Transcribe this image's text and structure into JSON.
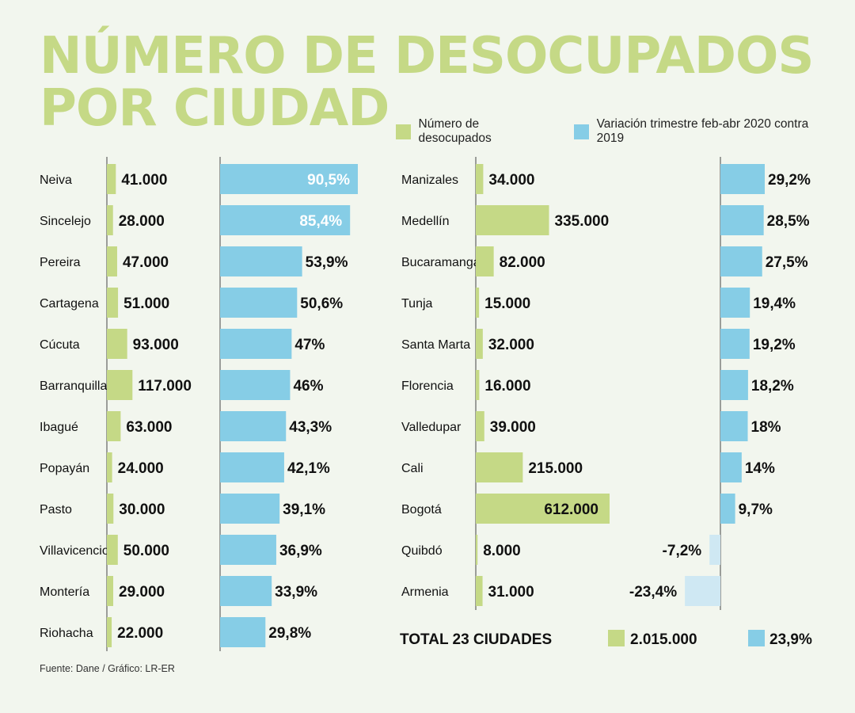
{
  "title": {
    "line1": "NÚMERO DE DESOCUPADOS",
    "line2": "POR CIUDAD"
  },
  "legend": {
    "green_label": "Número de desocupados",
    "blue_label": "Variación trimestre feb-abr 2020 contra 2019"
  },
  "colors": {
    "background": "#f2f6ee",
    "title": "#c5d986",
    "green": "#c5d986",
    "blue": "#86cde6",
    "blue_negative": "#cfe8f3",
    "axis": "#444444",
    "text": "#111111"
  },
  "source": "Fuente: Dane / Gráfico: LR-ER",
  "chart_data": {
    "type": "bar",
    "title": "NÚMERO DE DESOCUPADOS POR CIUDAD",
    "series": [
      {
        "name": "Número de desocupados",
        "key": "desocupados",
        "color": "#c5d986"
      },
      {
        "name": "Variación trimestre feb-abr 2020 contra 2019",
        "key": "variacion",
        "color": "#86cde6"
      }
    ],
    "panels": [
      {
        "rows": [
          {
            "city": "Neiva",
            "desocupados": 41000,
            "desocupados_label": "41.000",
            "variacion": 90.5,
            "variacion_label": "90,5%"
          },
          {
            "city": "Sincelejo",
            "desocupados": 28000,
            "desocupados_label": "28.000",
            "variacion": 85.4,
            "variacion_label": "85,4%"
          },
          {
            "city": "Pereira",
            "desocupados": 47000,
            "desocupados_label": "47.000",
            "variacion": 53.9,
            "variacion_label": "53,9%"
          },
          {
            "city": "Cartagena",
            "desocupados": 51000,
            "desocupados_label": "51.000",
            "variacion": 50.6,
            "variacion_label": "50,6%"
          },
          {
            "city": "Cúcuta",
            "desocupados": 93000,
            "desocupados_label": "93.000",
            "variacion": 47,
            "variacion_label": "47%"
          },
          {
            "city": "Barranquilla",
            "desocupados": 117000,
            "desocupados_label": "117.000",
            "variacion": 46,
            "variacion_label": "46%"
          },
          {
            "city": "Ibagué",
            "desocupados": 63000,
            "desocupados_label": "63.000",
            "variacion": 43.3,
            "variacion_label": "43,3%"
          },
          {
            "city": "Popayán",
            "desocupados": 24000,
            "desocupados_label": "24.000",
            "variacion": 42.1,
            "variacion_label": "42,1%"
          },
          {
            "city": "Pasto",
            "desocupados": 30000,
            "desocupados_label": "30.000",
            "variacion": 39.1,
            "variacion_label": "39,1%"
          },
          {
            "city": "Villavicencio",
            "desocupados": 50000,
            "desocupados_label": "50.000",
            "variacion": 36.9,
            "variacion_label": "36,9%"
          },
          {
            "city": "Montería",
            "desocupados": 29000,
            "desocupados_label": "29.000",
            "variacion": 33.9,
            "variacion_label": "33,9%"
          },
          {
            "city": "Riohacha",
            "desocupados": 22000,
            "desocupados_label": "22.000",
            "variacion": 29.8,
            "variacion_label": "29,8%"
          }
        ]
      },
      {
        "rows": [
          {
            "city": "Manizales",
            "desocupados": 34000,
            "desocupados_label": "34.000",
            "variacion": 29.2,
            "variacion_label": "29,2%"
          },
          {
            "city": "Medellín",
            "desocupados": 335000,
            "desocupados_label": "335.000",
            "variacion": 28.5,
            "variacion_label": "28,5%"
          },
          {
            "city": "Bucaramanga",
            "desocupados": 82000,
            "desocupados_label": "82.000",
            "variacion": 27.5,
            "variacion_label": "27,5%"
          },
          {
            "city": "Tunja",
            "desocupados": 15000,
            "desocupados_label": "15.000",
            "variacion": 19.4,
            "variacion_label": "19,4%"
          },
          {
            "city": "Santa Marta",
            "desocupados": 32000,
            "desocupados_label": "32.000",
            "variacion": 19.2,
            "variacion_label": "19,2%"
          },
          {
            "city": "Florencia",
            "desocupados": 16000,
            "desocupados_label": "16.000",
            "variacion": 18.2,
            "variacion_label": "18,2%"
          },
          {
            "city": "Valledupar",
            "desocupados": 39000,
            "desocupados_label": "39.000",
            "variacion": 18,
            "variacion_label": "18%"
          },
          {
            "city": "Cali",
            "desocupados": 215000,
            "desocupados_label": "215.000",
            "variacion": 14,
            "variacion_label": "14%"
          },
          {
            "city": "Bogotá",
            "desocupados": 612000,
            "desocupados_label": "612.000",
            "variacion": 9.7,
            "variacion_label": "9,7%"
          },
          {
            "city": "Quibdó",
            "desocupados": 8000,
            "desocupados_label": "8.000",
            "variacion": -7.2,
            "variacion_label": "-7,2%"
          },
          {
            "city": "Armenia",
            "desocupados": 31000,
            "desocupados_label": "31.000",
            "variacion": -23.4,
            "variacion_label": "-23,4%"
          }
        ]
      }
    ],
    "total": {
      "label": "TOTAL 23 CIUDADES",
      "desocupados": 2015000,
      "desocupados_label": "2.015.000",
      "variacion": 23.9,
      "variacion_label": "23,9%"
    }
  }
}
